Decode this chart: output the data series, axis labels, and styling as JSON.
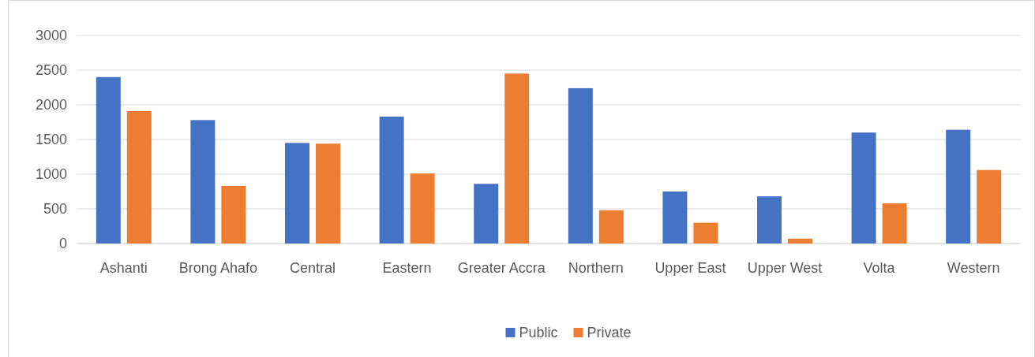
{
  "chart_data": {
    "type": "bar",
    "categories": [
      "Ashanti",
      "Brong Ahafo",
      "Central",
      "Eastern",
      "Greater Accra",
      "Northern",
      "Upper East",
      "Upper West",
      "Volta",
      "Western"
    ],
    "series": [
      {
        "name": "Public",
        "color": "#4472c4",
        "values": [
          2400,
          1780,
          1450,
          1830,
          860,
          2240,
          750,
          680,
          1600,
          1640
        ]
      },
      {
        "name": "Private",
        "color": "#ed7d31",
        "values": [
          1910,
          830,
          1440,
          1010,
          2450,
          480,
          300,
          70,
          580,
          1060
        ]
      }
    ],
    "ylim": [
      0,
      3000
    ],
    "yticks": [
      0,
      500,
      1000,
      1500,
      2000,
      2500,
      3000
    ],
    "grid": "y",
    "legend": "bottom"
  }
}
